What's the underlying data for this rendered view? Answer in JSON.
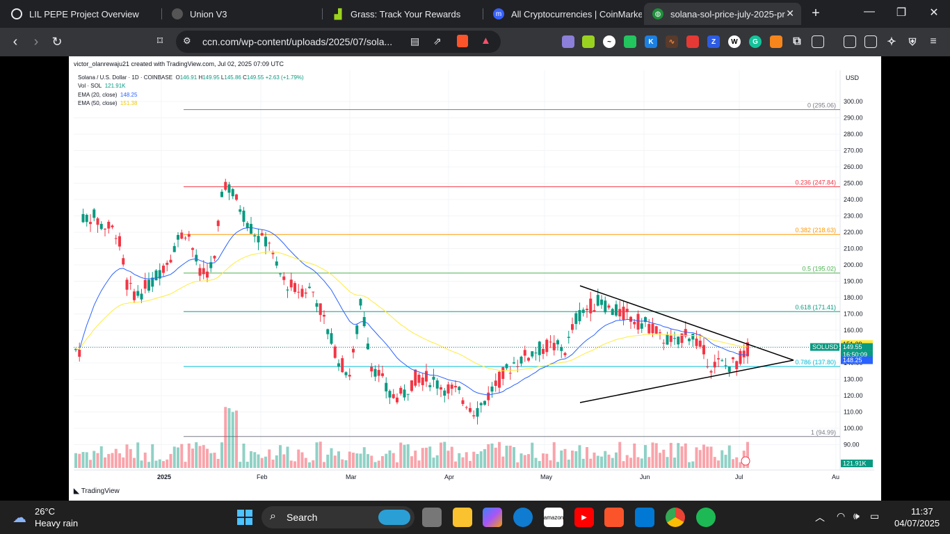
{
  "browser": {
    "tabs": [
      {
        "title": "LIL PEPE Project Overview",
        "icon": "globe-icon"
      },
      {
        "title": "Union V3",
        "icon": "union-icon"
      },
      {
        "title": "Grass: Track Your Rewards",
        "icon": "grass-icon"
      },
      {
        "title": "All Cryptocurrencies | CoinMarketC",
        "icon": "coinmarketcap-icon"
      },
      {
        "title": "solana-sol-price-july-2025-pr",
        "icon": "ccn-icon",
        "active": true
      }
    ],
    "new_tab": "+",
    "url": "ccn.com/wp-content/uploads/2025/07/sola...",
    "window_controls": {
      "minimize": "—",
      "restore": "❐",
      "close": "✕"
    }
  },
  "chart": {
    "credit": "victor_olanrewaju21 created with TradingView.com, Jul 02, 2025 07:09 UTC",
    "symbol": "Solana / U.S. Dollar · 1D · COINBASE",
    "o_label": "O",
    "o": "146.91",
    "h_label": "H",
    "h": "149.95",
    "l_label": "L",
    "l": "145.86",
    "c_label": "C",
    "c": "149.55",
    "change": "+2.63 (+1.79%)",
    "vol_label": "Vol · SOL",
    "vol": "121.91K",
    "ema20_label": "EMA (20, close)",
    "ema20": "148.25",
    "ema50_label": "EMA (50, close)",
    "ema50": "151.38",
    "currency": "USD",
    "brand": "TradingView",
    "price_ticks": [
      "300.00",
      "290.00",
      "280.00",
      "270.00",
      "260.00",
      "250.00",
      "240.00",
      "230.00",
      "220.00",
      "210.00",
      "200.00",
      "190.00",
      "180.00",
      "170.00",
      "160.00",
      "150.00",
      "140.00",
      "130.00",
      "120.00",
      "110.00",
      "100.00",
      "90.00"
    ],
    "time_labels": [
      "2025",
      "Feb",
      "Mar",
      "Apr",
      "May",
      "Jun",
      "Jul",
      "Au"
    ],
    "fib": [
      {
        "label": "0 (295.06)",
        "price": 295.06,
        "color": "#787b86"
      },
      {
        "label": "0.236 (247.84)",
        "price": 247.84,
        "color": "#f23645"
      },
      {
        "label": "0.382 (218.63)",
        "price": 218.63,
        "color": "#ff9800"
      },
      {
        "label": "0.5 (195.02)",
        "price": 195.02,
        "color": "#4caf50"
      },
      {
        "label": "0.618 (171.41)",
        "price": 171.41,
        "color": "#089981"
      },
      {
        "label": "0.786 (137.80)",
        "price": 137.8,
        "color": "#00bcd4"
      },
      {
        "label": "1 (94.99)",
        "price": 94.99,
        "color": "#787b86"
      }
    ],
    "tags": {
      "ema50": "151.38",
      "symbol": "SOLUSD",
      "price": "149.55",
      "countdown": "16:50:09",
      "ema20": "148.25",
      "vol": "121.91K"
    },
    "colors": {
      "up": "#089981",
      "down": "#f23645",
      "ema20": "#2962ff",
      "ema50": "#ffeb3b"
    }
  },
  "taskbar": {
    "temp": "26°C",
    "weather": "Heavy rain",
    "search": "Search",
    "time": "11:37",
    "date": "04/07/2025"
  }
}
